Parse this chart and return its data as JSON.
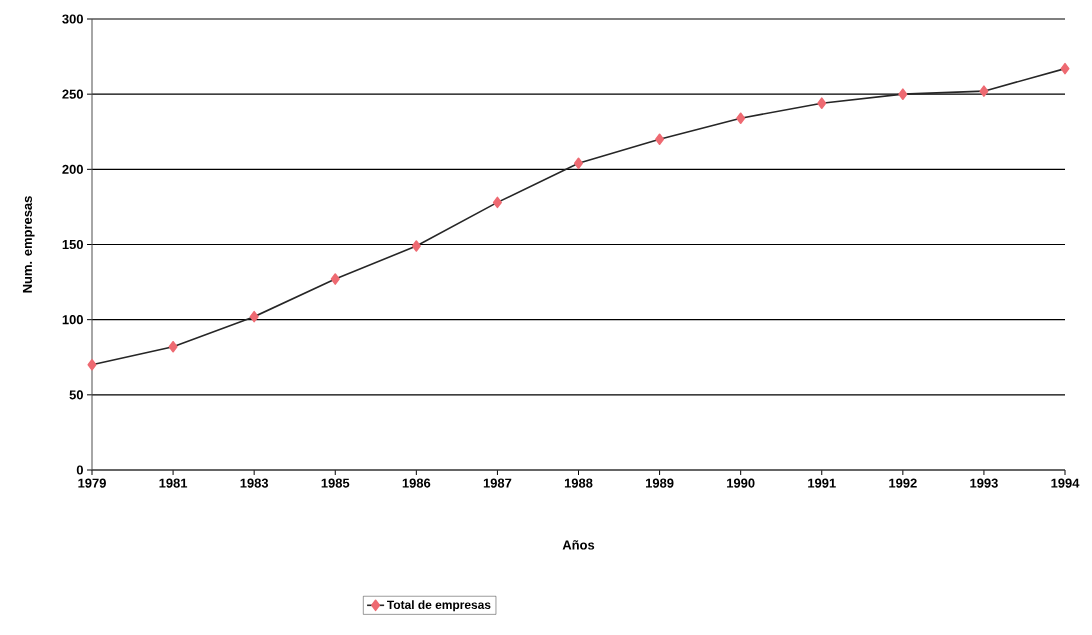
{
  "chart_data": {
    "type": "line",
    "xlabel": "Años",
    "ylabel": "Num. empresas",
    "categories": [
      "1979",
      "1981",
      "1983",
      "1985",
      "1986",
      "1987",
      "1988",
      "1989",
      "1990",
      "1991",
      "1992",
      "1993",
      "1994"
    ],
    "series": [
      {
        "name": "Total de empresas",
        "color": "#ee6a72",
        "values": [
          70,
          82,
          102,
          127,
          149,
          178,
          204,
          220,
          234,
          244,
          250,
          252,
          267
        ]
      }
    ],
    "ylim": [
      0,
      300
    ],
    "yticks": [
      0,
      50,
      100,
      150,
      200,
      250,
      300
    ],
    "grid": "y",
    "legend": "bottom",
    "marker": "diamond",
    "line_style": "solid"
  }
}
